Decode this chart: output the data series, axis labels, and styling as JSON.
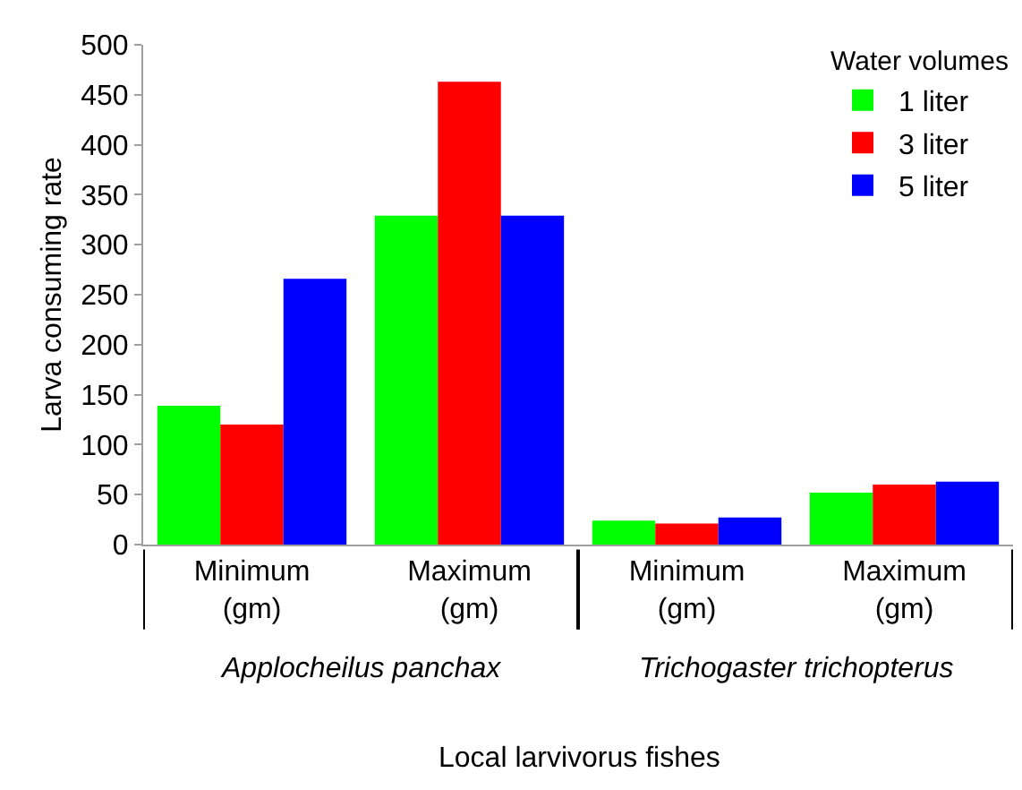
{
  "chart_data": {
    "type": "bar",
    "xlabel": "Local larvivorus fishes",
    "ylabel": "Larva consuming rate",
    "legend_title": "Water volumes",
    "categories": [
      "Minimum\n(gm)",
      "Maximum\n(gm)",
      "Minimum\n(gm)",
      "Maximum\n(gm)"
    ],
    "series": [
      {
        "name": "1 liter",
        "color": "#00ff00",
        "values": [
          139,
          329,
          24,
          52
        ]
      },
      {
        "name": "3 liter",
        "color": "#ff0000",
        "values": [
          120,
          463,
          21,
          60
        ]
      },
      {
        "name": "5 liter",
        "color": "#0000ff",
        "values": [
          266,
          329,
          27,
          63
        ]
      }
    ],
    "ylim": [
      0,
      500
    ],
    "yticks": [
      0,
      50,
      100,
      150,
      200,
      250,
      300,
      350,
      400,
      450,
      500
    ],
    "annotations": [
      "Applocheilus panchax",
      "Trichogaster trichopterus"
    ],
    "legend": "top right"
  }
}
